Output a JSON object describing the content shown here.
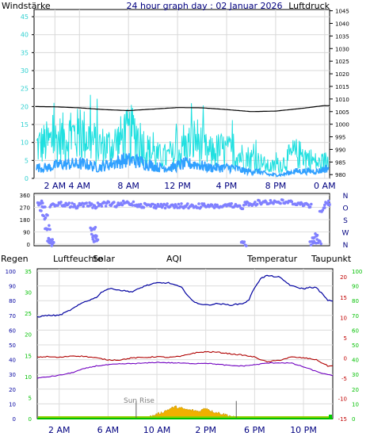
{
  "title": "24 hour graph day : 02 Januar 2026",
  "colors": {
    "wind_label": "#2fd0d0",
    "pressure_label": "#000000",
    "rain": "#00c000",
    "humidity": "#0000a0",
    "solar": "#806000",
    "aqi": "#a08000",
    "temperature": "#c00000",
    "dewpoint": "#c00000",
    "wind_gust": "#20e0e0",
    "wind_avg": "#30a0ff",
    "pressure_line": "#000000",
    "direction_dots": "#8080ff",
    "temp_line": "#b00000",
    "dew_line": "#7000c0"
  },
  "chart_data": [
    {
      "type": "line",
      "name": "wind",
      "left_label": "Windstärke",
      "right_label": "Luftdruck",
      "x_ticks": [
        "2 AM",
        "4 AM",
        "8 AM",
        "12 PM",
        "4 PM",
        "8 PM",
        "0 AM"
      ],
      "x_tick_hours": [
        2,
        4,
        8,
        12,
        16,
        20,
        24
      ],
      "x_range_hours": [
        0.3,
        24.4
      ],
      "wind_ylim": [
        0,
        47
      ],
      "wind_yticks": [
        0,
        5,
        10,
        15,
        20,
        25,
        30,
        35,
        40,
        45
      ],
      "pressure_ylim": [
        978.5,
        1045.5
      ],
      "pressure_yticks": [
        980,
        985,
        990,
        995,
        1000,
        1005,
        1010,
        1015,
        1020,
        1025,
        1030,
        1035,
        1040,
        1045
      ],
      "series": [
        {
          "role": "gust",
          "x": [
            0.5,
            1.5,
            2.5,
            3.5,
            4.5,
            5.5,
            6.5,
            7.5,
            8.5,
            9.5,
            10.5,
            11.5,
            12.5,
            13.5,
            14.5,
            15.5,
            16.5,
            17.5,
            18.5,
            19.5,
            20.5,
            21.5,
            22.5,
            23.5,
            24.3
          ],
          "values": [
            9,
            10,
            11,
            12,
            12,
            9,
            9,
            11,
            13,
            8,
            6,
            6,
            8,
            11,
            7,
            8,
            7,
            6,
            5,
            3,
            4,
            7,
            6,
            4,
            5
          ]
        },
        {
          "role": "avg",
          "x": [
            0.5,
            1.5,
            2.5,
            3.5,
            4.5,
            5.5,
            6.5,
            7.5,
            8.5,
            9.5,
            10.5,
            11.5,
            12.5,
            13.5,
            14.5,
            15.5,
            16.5,
            17.5,
            18.5,
            19.5,
            20.5,
            21.5,
            22.5,
            23.5,
            24.3
          ],
          "values": [
            3,
            3,
            4,
            4,
            4,
            3,
            4,
            5,
            5,
            4,
            3,
            3,
            4,
            4,
            3,
            3,
            3,
            2,
            2,
            1,
            1,
            2,
            2,
            2,
            3
          ]
        },
        {
          "role": "pressure",
          "x": [
            0.4,
            2,
            4,
            6,
            8,
            10,
            12,
            14,
            16,
            18,
            20,
            22,
            24,
            24.4
          ],
          "values": [
            1007,
            1006.9,
            1006.5,
            1005.8,
            1005.4,
            1006,
            1006.6,
            1006.5,
            1005.8,
            1005,
            1005.2,
            1006.2,
            1007.4,
            1007.3
          ]
        }
      ]
    },
    {
      "type": "scatter",
      "name": "wind-direction",
      "x_range_hours": [
        0.3,
        24.4
      ],
      "ylim": [
        0,
        360
      ],
      "y_tick_values": [
        0,
        90,
        180,
        270,
        360
      ],
      "yticks": [
        "0",
        "90",
        "180",
        "270",
        "360"
      ],
      "compass": [
        "N",
        "W",
        "S",
        "O",
        "N"
      ],
      "points": [
        [
          0.6,
          300
        ],
        [
          0.8,
          260
        ],
        [
          1,
          200
        ],
        [
          1.2,
          120
        ],
        [
          1.4,
          40
        ],
        [
          1.5,
          2
        ],
        [
          1.6,
          290
        ],
        [
          2,
          290
        ],
        [
          2.5,
          295
        ],
        [
          3,
          285
        ],
        [
          3.5,
          280
        ],
        [
          4,
          285
        ],
        [
          4.5,
          290
        ],
        [
          5,
          280
        ],
        [
          5.5,
          290
        ],
        [
          6,
          295
        ],
        [
          6.5,
          290
        ],
        [
          7,
          285
        ],
        [
          7.5,
          300
        ],
        [
          8,
          300
        ],
        [
          8.5,
          290
        ],
        [
          9,
          285
        ],
        [
          9.5,
          285
        ],
        [
          10,
          280
        ],
        [
          10.5,
          285
        ],
        [
          11,
          280
        ],
        [
          11.5,
          275
        ],
        [
          12,
          280
        ],
        [
          12.5,
          280
        ],
        [
          13,
          275
        ],
        [
          13.5,
          280
        ],
        [
          14,
          280
        ],
        [
          14.5,
          275
        ],
        [
          15,
          280
        ],
        [
          15.5,
          275
        ],
        [
          16,
          280
        ],
        [
          16.5,
          275
        ],
        [
          17,
          275
        ],
        [
          17.5,
          300
        ],
        [
          18,
          300
        ],
        [
          18.5,
          305
        ],
        [
          19,
          310
        ],
        [
          19.5,
          310
        ],
        [
          20,
          310
        ],
        [
          20.5,
          310
        ],
        [
          21,
          305
        ],
        [
          21.5,
          300
        ],
        [
          22,
          295
        ],
        [
          22.5,
          285
        ],
        [
          23,
          60
        ],
        [
          23.3,
          20
        ],
        [
          23.6,
          250
        ],
        [
          24,
          300
        ],
        [
          24.3,
          285
        ],
        [
          4.9,
          110
        ],
        [
          5.0,
          60
        ],
        [
          5.1,
          30
        ],
        [
          17.2,
          5
        ],
        [
          22.8,
          10
        ]
      ]
    },
    {
      "type": "line",
      "name": "weather",
      "legend": [
        "Regen",
        "Luftfeuchte",
        "Solar",
        "AQI",
        "Temperatur",
        "Taupunkt"
      ],
      "x_ticks": [
        "2 AM",
        "6 AM",
        "10 AM",
        "2 PM",
        "6 PM",
        "10 PM"
      ],
      "x_tick_hours": [
        2,
        6,
        10,
        14,
        18,
        22
      ],
      "x_range_hours": [
        0.2,
        24.4
      ],
      "left_ylim": [
        0,
        100
      ],
      "left_yticks": [
        0,
        10,
        20,
        30,
        40,
        50,
        60,
        70,
        80,
        90,
        100
      ],
      "left2_ylim": [
        0,
        35
      ],
      "left2_yticks": [
        0,
        5,
        10,
        15,
        20,
        25,
        30,
        35
      ],
      "right_ylim": [
        -15,
        22
      ],
      "right_yticks": [
        -15,
        -10,
        -5,
        0,
        5,
        10,
        15,
        20
      ],
      "right2_ylim": [
        0,
        100
      ],
      "right2_yticks": [
        0,
        10,
        20,
        30,
        40,
        50,
        60,
        70,
        80,
        90,
        100
      ],
      "annotation": "Sun Rise",
      "annotation_hour": 8.3,
      "sunset_hour": 16.5,
      "series": [
        {
          "role": "humidity",
          "x": [
            0.2,
            1,
            2,
            3,
            4,
            5,
            5.5,
            6,
            6.5,
            7,
            8,
            9,
            10,
            11,
            12,
            13,
            14,
            15,
            16,
            17,
            17.5,
            18,
            18.5,
            19,
            20,
            21,
            22,
            22.5,
            23,
            23.5,
            24,
            24.4
          ],
          "values": [
            69,
            70,
            70,
            74,
            79,
            82,
            86,
            88,
            88,
            87,
            86,
            90,
            92,
            92,
            89,
            79,
            77,
            78,
            77,
            78,
            80,
            89,
            95,
            97,
            96,
            90,
            88,
            89,
            89,
            85,
            80,
            80
          ]
        },
        {
          "role": "temperature",
          "x": [
            0.2,
            1,
            2,
            3,
            4,
            5,
            6,
            7,
            8,
            9,
            10,
            11,
            12,
            13,
            14,
            15,
            16,
            17,
            18,
            19,
            20,
            21,
            22,
            23,
            24,
            24.4
          ],
          "values": [
            0.2,
            0.3,
            0.1,
            0.5,
            0.4,
            0,
            -0.5,
            -0.5,
            0,
            0.1,
            0.3,
            0.1,
            0.4,
            1.2,
            1.5,
            1.4,
            1,
            0.7,
            0.2,
            -1,
            -0.6,
            0.2,
            0,
            -0.4,
            -2,
            -2
          ]
        },
        {
          "role": "dewpoint",
          "x": [
            0.2,
            1,
            2,
            3,
            4,
            5,
            6,
            7,
            8,
            9,
            10,
            11,
            12,
            13,
            14,
            15,
            16,
            17,
            18,
            19,
            20,
            21,
            22,
            23,
            24,
            24.4
          ],
          "values": [
            -5,
            -4.7,
            -4.3,
            -3.7,
            -2.7,
            -2,
            -1.7,
            -1.5,
            -1.4,
            -1.3,
            -1.1,
            -1.2,
            -1.3,
            -1.4,
            -1.3,
            -1.6,
            -1.9,
            -2,
            -1.7,
            -1.3,
            -1.2,
            -1.3,
            -2.2,
            -3.3,
            -4.2,
            -4.3
          ]
        },
        {
          "role": "solar",
          "x": [
            8.3,
            9,
            9.5,
            10,
            10.5,
            11,
            11.5,
            12,
            12.5,
            13,
            13.5,
            14,
            14.5,
            15,
            15.5,
            16,
            16.5
          ],
          "values": [
            0,
            0.5,
            1.5,
            3,
            4.5,
            6.5,
            8,
            7,
            6,
            5.5,
            5,
            7.5,
            5,
            4,
            3,
            2,
            0
          ]
        },
        {
          "role": "rain",
          "x": [
            0.2,
            24.4
          ],
          "values": [
            0,
            0
          ]
        }
      ]
    }
  ]
}
